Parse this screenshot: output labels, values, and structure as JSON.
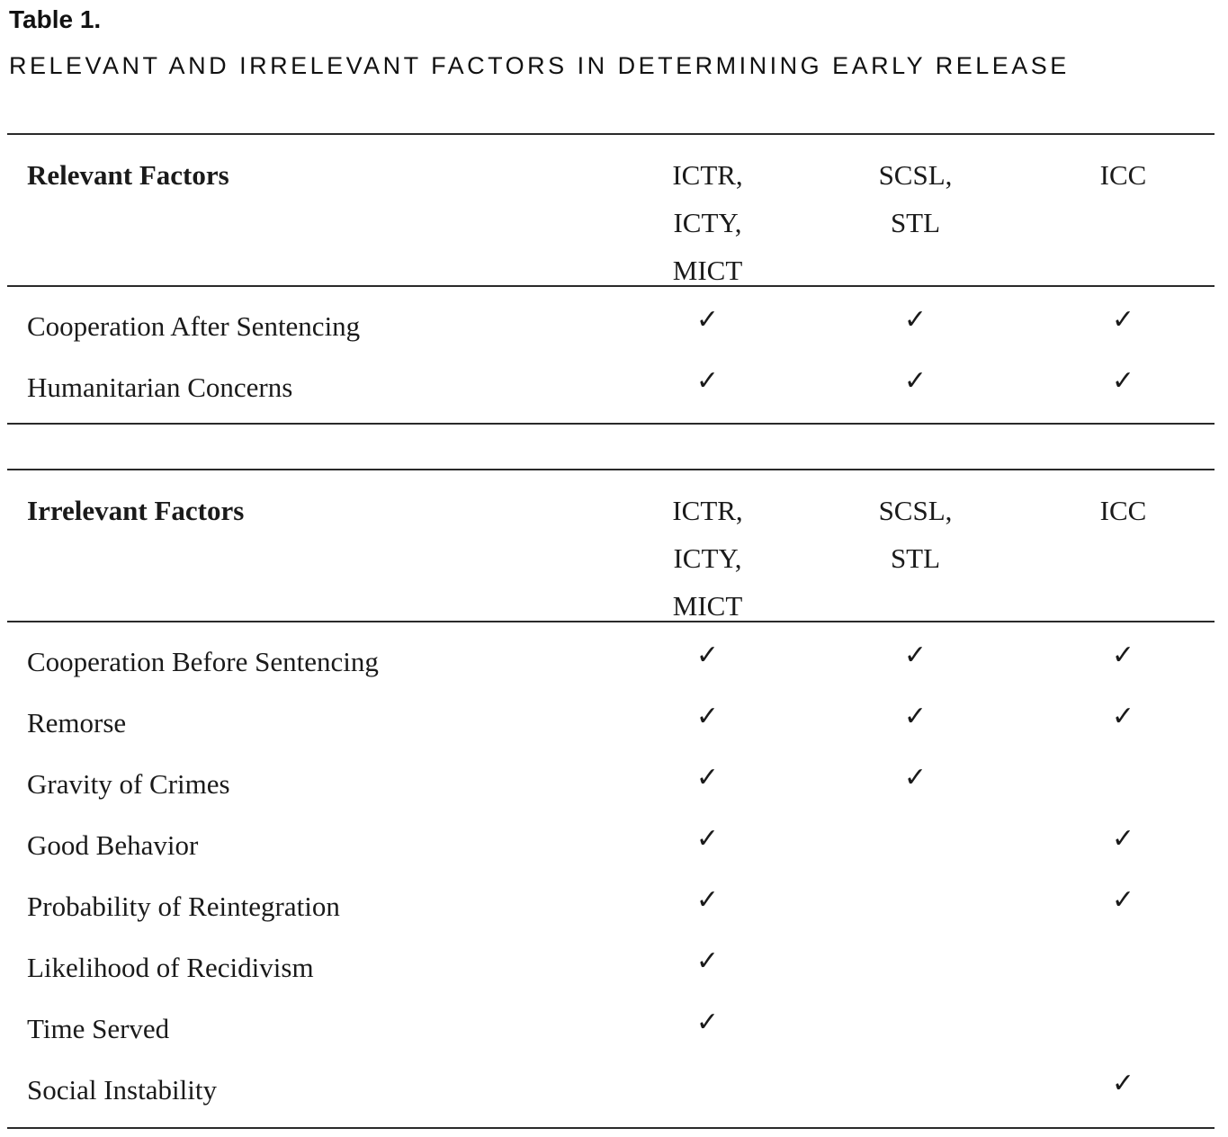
{
  "caption": {
    "label": "Table 1.",
    "title": "RELEVANT AND IRRELEVANT FACTORS IN DETERMINING EARLY RELEASE"
  },
  "check_glyph": "✓",
  "tables": [
    {
      "heading": "Relevant Factors",
      "columns": [
        [
          "ICTR,",
          "ICTY,",
          "MICT"
        ],
        [
          "SCSL,",
          "STL"
        ],
        [
          "ICC"
        ]
      ],
      "rows": [
        {
          "factor": "Cooperation After Sentencing",
          "ictr_icty_mict": true,
          "scsl_stl": true,
          "icc": true
        },
        {
          "factor": "Humanitarian Concerns",
          "ictr_icty_mict": true,
          "scsl_stl": true,
          "icc": true
        }
      ]
    },
    {
      "heading": "Irrelevant Factors",
      "columns": [
        [
          "ICTR,",
          "ICTY,",
          "MICT"
        ],
        [
          "SCSL,",
          "STL"
        ],
        [
          "ICC"
        ]
      ],
      "rows": [
        {
          "factor": "Cooperation Before Sentencing",
          "ictr_icty_mict": true,
          "scsl_stl": true,
          "icc": true
        },
        {
          "factor": "Remorse",
          "ictr_icty_mict": true,
          "scsl_stl": true,
          "icc": true
        },
        {
          "factor": "Gravity of Crimes",
          "ictr_icty_mict": true,
          "scsl_stl": true,
          "icc": false
        },
        {
          "factor": "Good Behavior",
          "ictr_icty_mict": true,
          "scsl_stl": false,
          "icc": true
        },
        {
          "factor": "Probability of Reintegration",
          "ictr_icty_mict": true,
          "scsl_stl": false,
          "icc": true
        },
        {
          "factor": "Likelihood of Recidivism",
          "ictr_icty_mict": true,
          "scsl_stl": false,
          "icc": false
        },
        {
          "factor": "Time Served",
          "ictr_icty_mict": true,
          "scsl_stl": false,
          "icc": false
        },
        {
          "factor": "Social Instability",
          "ictr_icty_mict": false,
          "scsl_stl": false,
          "icc": true
        }
      ]
    }
  ]
}
